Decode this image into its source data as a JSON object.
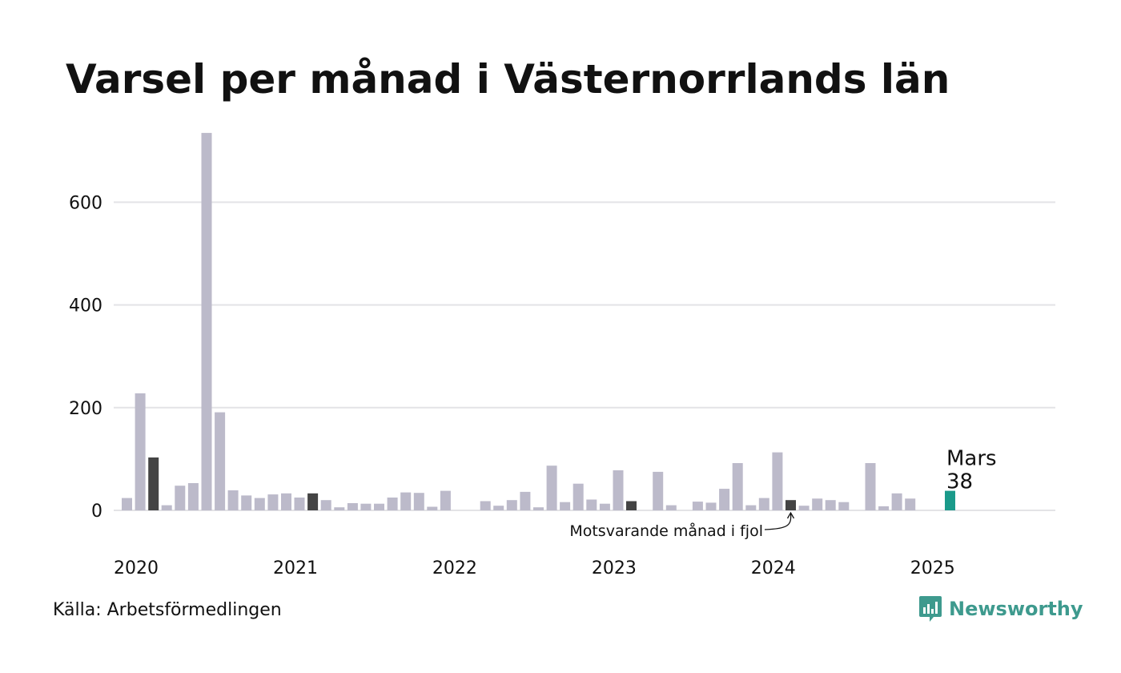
{
  "title": "Varsel per månad i Västernorrlands län",
  "source": "Källa: Arbetsförmedlingen",
  "brand": {
    "name": "Newsworthy",
    "icon": "newsworthy-logo-icon",
    "color": "#3e9a8e"
  },
  "colors": {
    "default": "#bcbaca",
    "same_month": "#444444",
    "current": "#1a9a8a",
    "grid": "#e3e3e6"
  },
  "chart_data": {
    "type": "bar",
    "title": "Varsel per månad i Västernorrlands län",
    "ylim": [
      0,
      750
    ],
    "yticks": [
      0,
      200,
      400,
      600
    ],
    "grid": true,
    "x_tick_labels": [
      "2020",
      "2021",
      "2022",
      "2023",
      "2024",
      "2025"
    ],
    "categories": [
      "2020-01",
      "2020-02",
      "2020-03",
      "2020-04",
      "2020-05",
      "2020-06",
      "2020-07",
      "2020-08",
      "2020-09",
      "2020-10",
      "2020-11",
      "2020-12",
      "2021-01",
      "2021-02",
      "2021-03",
      "2021-04",
      "2021-05",
      "2021-06",
      "2021-07",
      "2021-08",
      "2021-09",
      "2021-10",
      "2021-11",
      "2021-12",
      "2022-01",
      "2022-02",
      "2022-03",
      "2022-04",
      "2022-05",
      "2022-06",
      "2022-07",
      "2022-08",
      "2022-09",
      "2022-10",
      "2022-11",
      "2022-12",
      "2023-01",
      "2023-02",
      "2023-03",
      "2023-04",
      "2023-05",
      "2023-06",
      "2023-07",
      "2023-08",
      "2023-09",
      "2023-10",
      "2023-11",
      "2023-12",
      "2024-01",
      "2024-02",
      "2024-03",
      "2024-04",
      "2024-05",
      "2024-06",
      "2024-07",
      "2024-08",
      "2024-09",
      "2024-10",
      "2024-11",
      "2024-12",
      "2025-01",
      "2025-02",
      "2025-03"
    ],
    "values": [
      24,
      228,
      103,
      10,
      48,
      53,
      735,
      191,
      39,
      29,
      24,
      31,
      33,
      25,
      33,
      20,
      6,
      14,
      13,
      13,
      25,
      35,
      34,
      7,
      38,
      0,
      0,
      18,
      9,
      20,
      36,
      6,
      87,
      16,
      52,
      21,
      13,
      78,
      18,
      0,
      75,
      10,
      0,
      17,
      15,
      42,
      92,
      10,
      24,
      113,
      20,
      9,
      23,
      20,
      16,
      0,
      92,
      8,
      33,
      23,
      0,
      0,
      38
    ],
    "highlight_same_month_indices": [
      2,
      14,
      38,
      50
    ],
    "current_index": 62,
    "current_label": {
      "month": "Mars",
      "value": "38"
    },
    "annotation": "Motsvarande månad i fjol"
  }
}
